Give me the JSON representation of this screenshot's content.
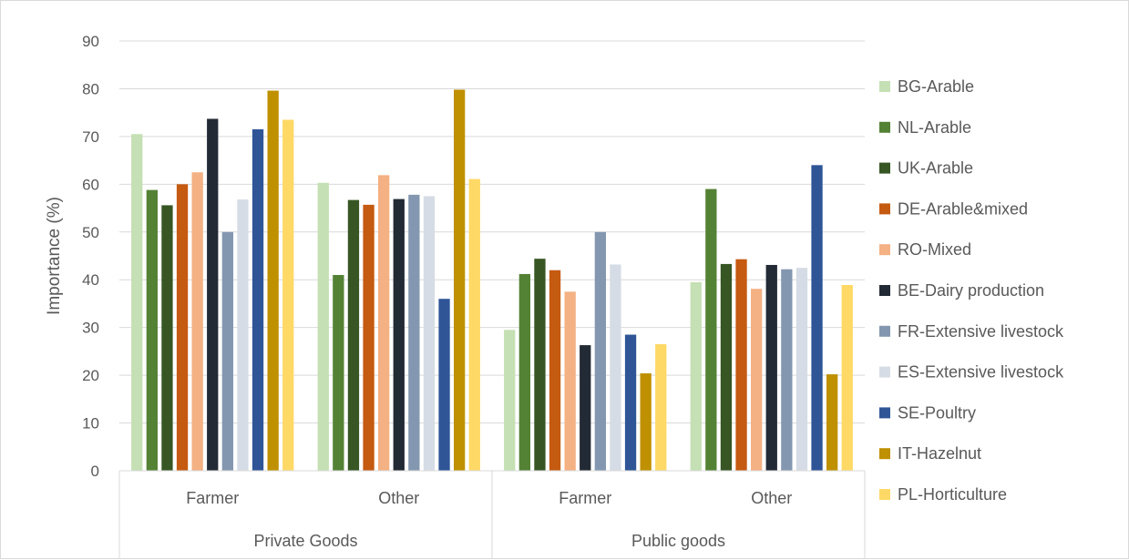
{
  "chart_data": {
    "type": "bar",
    "ylabel": "Importance (%)",
    "xlabel": "",
    "ylim": [
      0,
      90
    ],
    "yticks": [
      0,
      10,
      20,
      30,
      40,
      50,
      60,
      70,
      80,
      90
    ],
    "grid": true,
    "legend_position": "right",
    "groups": [
      {
        "label": "Private Goods",
        "categories": [
          "Farmer",
          "Other"
        ]
      },
      {
        "label": "Public goods",
        "categories": [
          "Farmer",
          "Other"
        ]
      }
    ],
    "categories": [
      "Farmer",
      "Other",
      "Farmer",
      "Other"
    ],
    "series": [
      {
        "name": "BG-Arable",
        "color": "#c5e0b4",
        "values": [
          70.5,
          60.3,
          29.5,
          39.5
        ]
      },
      {
        "name": "NL-Arable",
        "color": "#548235",
        "values": [
          58.8,
          41.0,
          41.2,
          59.0
        ]
      },
      {
        "name": "UK-Arable",
        "color": "#375623",
        "values": [
          55.6,
          56.7,
          44.4,
          43.3
        ]
      },
      {
        "name": "DE-Arable&mixed",
        "color": "#c55a11",
        "values": [
          60.0,
          55.7,
          42.0,
          44.3
        ]
      },
      {
        "name": "RO-Mixed",
        "color": "#f4b183",
        "values": [
          62.5,
          61.9,
          37.5,
          38.1
        ]
      },
      {
        "name": "BE-Dairy production",
        "color": "#222a35",
        "values": [
          73.7,
          56.9,
          26.3,
          43.1
        ]
      },
      {
        "name": "FR-Extensive livestock",
        "color": "#8497b0",
        "values": [
          50.0,
          57.8,
          50.0,
          42.2
        ]
      },
      {
        "name": "ES-Extensive livestock",
        "color": "#d6dce5",
        "values": [
          56.8,
          57.5,
          43.2,
          42.5
        ]
      },
      {
        "name": "SE-Poultry",
        "color": "#2f5597",
        "values": [
          71.5,
          36.0,
          28.5,
          64.0
        ]
      },
      {
        "name": "IT-Hazelnut",
        "color": "#bf9000",
        "values": [
          79.6,
          79.8,
          20.4,
          20.2
        ]
      },
      {
        "name": "PL-Horticulture",
        "color": "#ffd966",
        "values": [
          73.5,
          61.1,
          26.5,
          38.9
        ]
      }
    ]
  }
}
